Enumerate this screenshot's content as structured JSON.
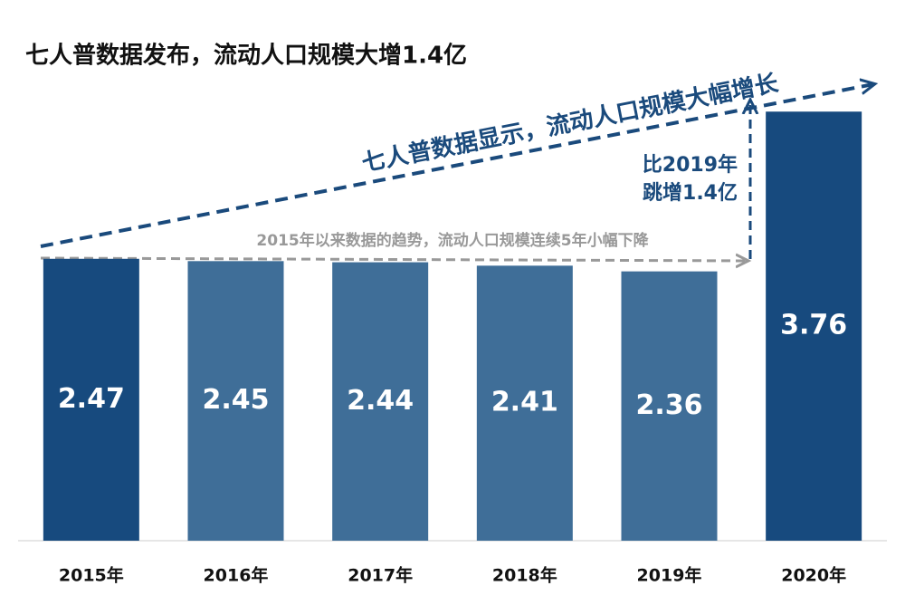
{
  "chart_data": {
    "type": "bar",
    "title": "七人普数据发布，流动人口规模大增1.4亿",
    "categories": [
      "2015年",
      "2016年",
      "2017年",
      "2018年",
      "2019年",
      "2020年"
    ],
    "values": [
      2.47,
      2.45,
      2.44,
      2.41,
      2.36,
      3.76
    ],
    "colors": [
      "#174a7e",
      "#3f6e98",
      "#3f6e98",
      "#3f6e98",
      "#3f6e98",
      "#174a7e"
    ],
    "ylim": [
      0,
      4
    ],
    "annotations": [
      "七人普数据显示，流动人口规模大幅增长",
      "2015年以来数据的趋势，流动人口规模连续5年小幅下降",
      "比2019年",
      "跳增1.4亿"
    ]
  }
}
